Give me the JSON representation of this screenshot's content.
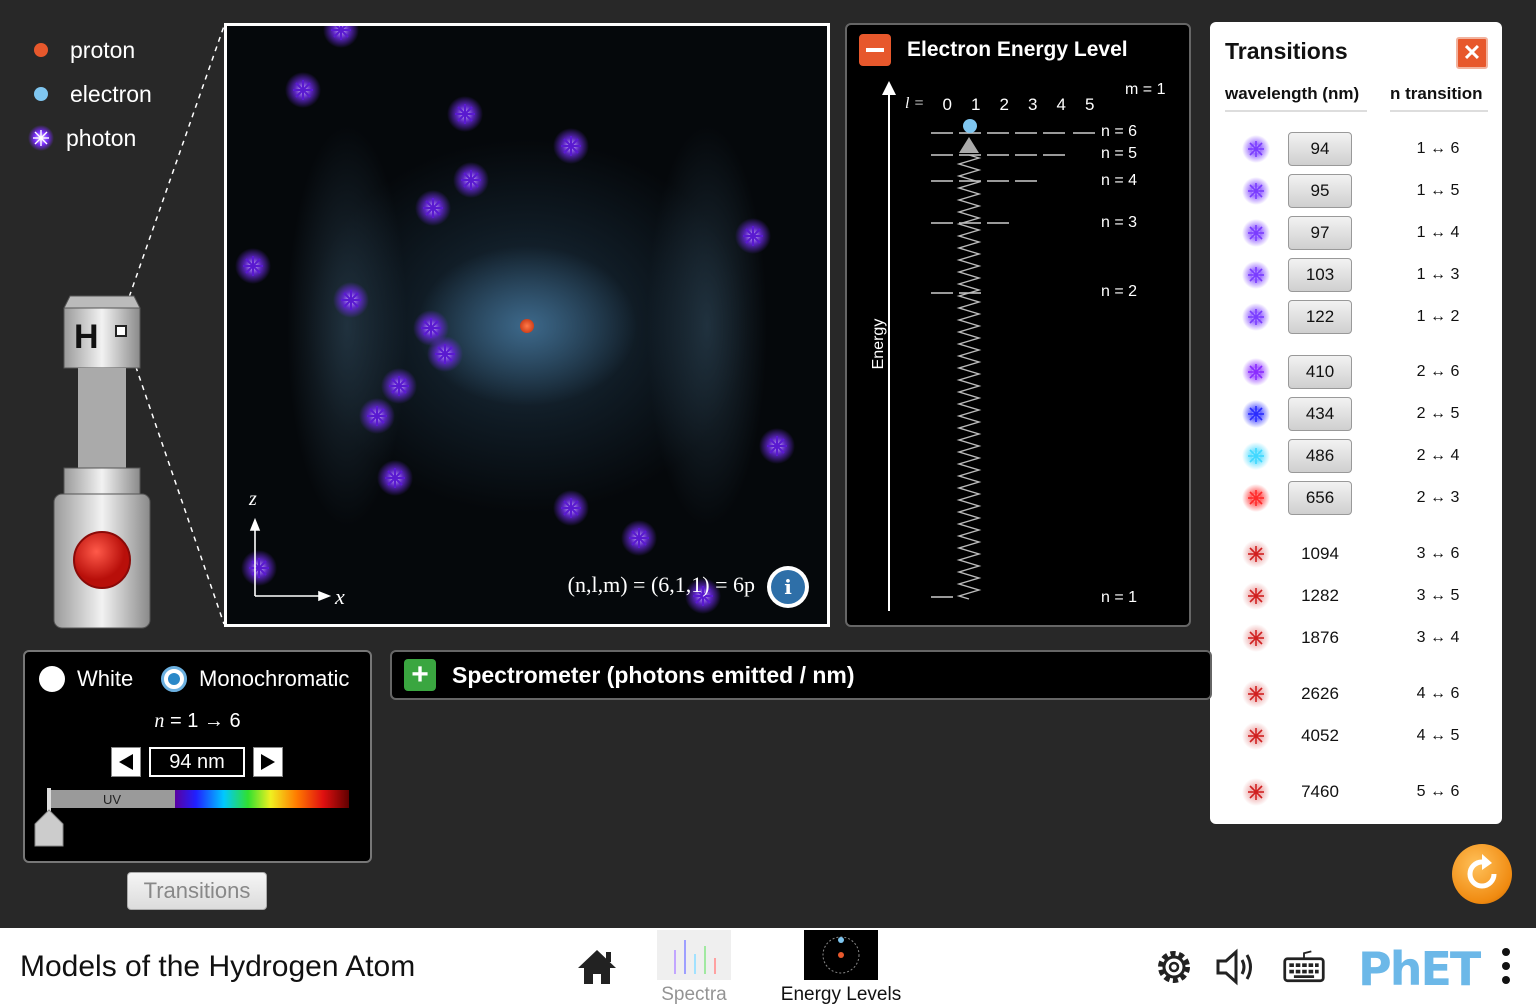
{
  "legend": {
    "proton": "proton",
    "electron": "electron",
    "photon": "photon"
  },
  "gun": {
    "element_label": "H"
  },
  "atom_view": {
    "z_label": "z",
    "x_label": "x",
    "state_label": "(n,l,m) = (6,1,1) = 6p"
  },
  "energy_panel": {
    "title": "Electron Energy Level",
    "l_label": "l =",
    "l_values": [
      "0",
      "1",
      "2",
      "3",
      "4",
      "5"
    ],
    "m_label": "m = 1",
    "axis_label": "Energy",
    "levels": [
      "n = 6",
      "n = 5",
      "n = 4",
      "n = 3",
      "n = 2",
      "n = 1"
    ]
  },
  "transitions": {
    "title": "Transitions",
    "col_wavelength": "wavelength (nm)",
    "col_transition": "n transition",
    "rows": [
      {
        "wl": "94",
        "nt": "1 ↔ 6",
        "button": true,
        "color": "#7a3cff"
      },
      {
        "wl": "95",
        "nt": "1 ↔ 5",
        "button": true,
        "color": "#7a3cff"
      },
      {
        "wl": "97",
        "nt": "1 ↔ 4",
        "button": true,
        "color": "#7a3cff"
      },
      {
        "wl": "103",
        "nt": "1 ↔ 3",
        "button": true,
        "color": "#7a3cff"
      },
      {
        "wl": "122",
        "nt": "1 ↔ 2",
        "button": true,
        "color": "#7a3cff"
      },
      {
        "wl": "410",
        "nt": "2 ↔ 6",
        "button": true,
        "color": "#8a2cff"
      },
      {
        "wl": "434",
        "nt": "2 ↔ 5",
        "button": true,
        "color": "#2a2cff"
      },
      {
        "wl": "486",
        "nt": "2 ↔ 4",
        "button": true,
        "color": "#40d8ff"
      },
      {
        "wl": "656",
        "nt": "2 ↔ 3",
        "button": true,
        "color": "#ff2a2a"
      },
      {
        "wl": "1094",
        "nt": "3 ↔ 6",
        "button": false,
        "color": "#d02020"
      },
      {
        "wl": "1282",
        "nt": "3 ↔ 5",
        "button": false,
        "color": "#d02020"
      },
      {
        "wl": "1876",
        "nt": "3 ↔ 4",
        "button": false,
        "color": "#d02020"
      },
      {
        "wl": "2626",
        "nt": "4 ↔ 6",
        "button": false,
        "color": "#d02020"
      },
      {
        "wl": "4052",
        "nt": "4 ↔ 5",
        "button": false,
        "color": "#d02020"
      },
      {
        "wl": "7460",
        "nt": "5 ↔ 6",
        "button": false,
        "color": "#d02020"
      }
    ]
  },
  "light_control": {
    "white_label": "White",
    "mono_label": "Monochromatic",
    "selected": "Monochromatic",
    "n_prefix": "n",
    "n_transition": "= 1 → 6",
    "wavelength": "94 nm",
    "uv_label": "UV"
  },
  "transitions_button": "Transitions",
  "spectrometer": {
    "title": "Spectrometer (photons emitted / nm)"
  },
  "navbar": {
    "sim_title": "Models of the Hydrogen Atom",
    "screen_spectra": "Spectra",
    "screen_energy": "Energy Levels",
    "logo": "PhET"
  },
  "colors": {
    "proton": "#e7582c",
    "electron": "#7fc6f0",
    "accent": "#e7582c",
    "plus": "#3aa640"
  }
}
